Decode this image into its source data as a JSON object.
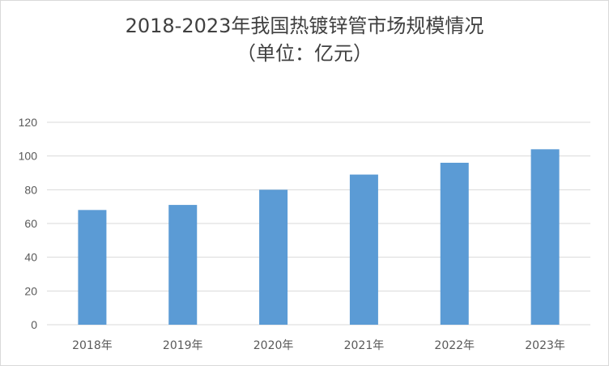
{
  "chart_data": {
    "type": "bar",
    "title": "2018-2023年我国热镀锌管市场规模情况",
    "subtitle": "（单位：亿元）",
    "categories": [
      "2018年",
      "2019年",
      "2020年",
      "2021年",
      "2022年",
      "2023年"
    ],
    "values": [
      68,
      71,
      80,
      89,
      96,
      104
    ],
    "ylim": [
      0,
      120
    ],
    "yticks": [
      0,
      20,
      40,
      60,
      80,
      100,
      120
    ],
    "grid": true,
    "legend": "none",
    "bar_color": "#5b9bd5",
    "grid_color": "#d9d9d9"
  }
}
